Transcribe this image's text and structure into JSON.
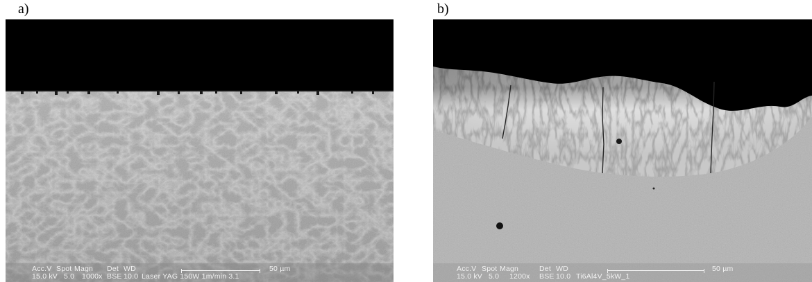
{
  "panels": [
    {
      "label": "a)",
      "databar": {
        "accv_label": "Acc.V",
        "spot_label": "Spot",
        "magn_label": "Magn",
        "det_label": "Det",
        "wd_label": "WD",
        "accv": "15.0 kV",
        "spot": "5.0",
        "magn": "1000x",
        "det": "BSE",
        "wd": "10.0",
        "scale": "50 µm",
        "sample": "Laser YAG 150W 1m/min 3.1"
      }
    },
    {
      "label": "b)",
      "databar": {
        "accv_label": "Acc.V",
        "spot_label": "Spot",
        "magn_label": "Magn",
        "det_label": "Det",
        "wd_label": "WD",
        "accv": "15.0 kV",
        "spot": "5.0",
        "magn": "1200x",
        "det": "BSE",
        "wd": "10.0",
        "scale": "50 µm",
        "sample": "Ti6Al4V_5kW_1"
      }
    }
  ],
  "colors": {
    "background_void": "#000000",
    "matrix_a": "#a6a6a6",
    "matrix_b": "#b4b4b4",
    "melt_zone_b": "#dcdcdc",
    "databar_text": "#f2f2f2"
  }
}
